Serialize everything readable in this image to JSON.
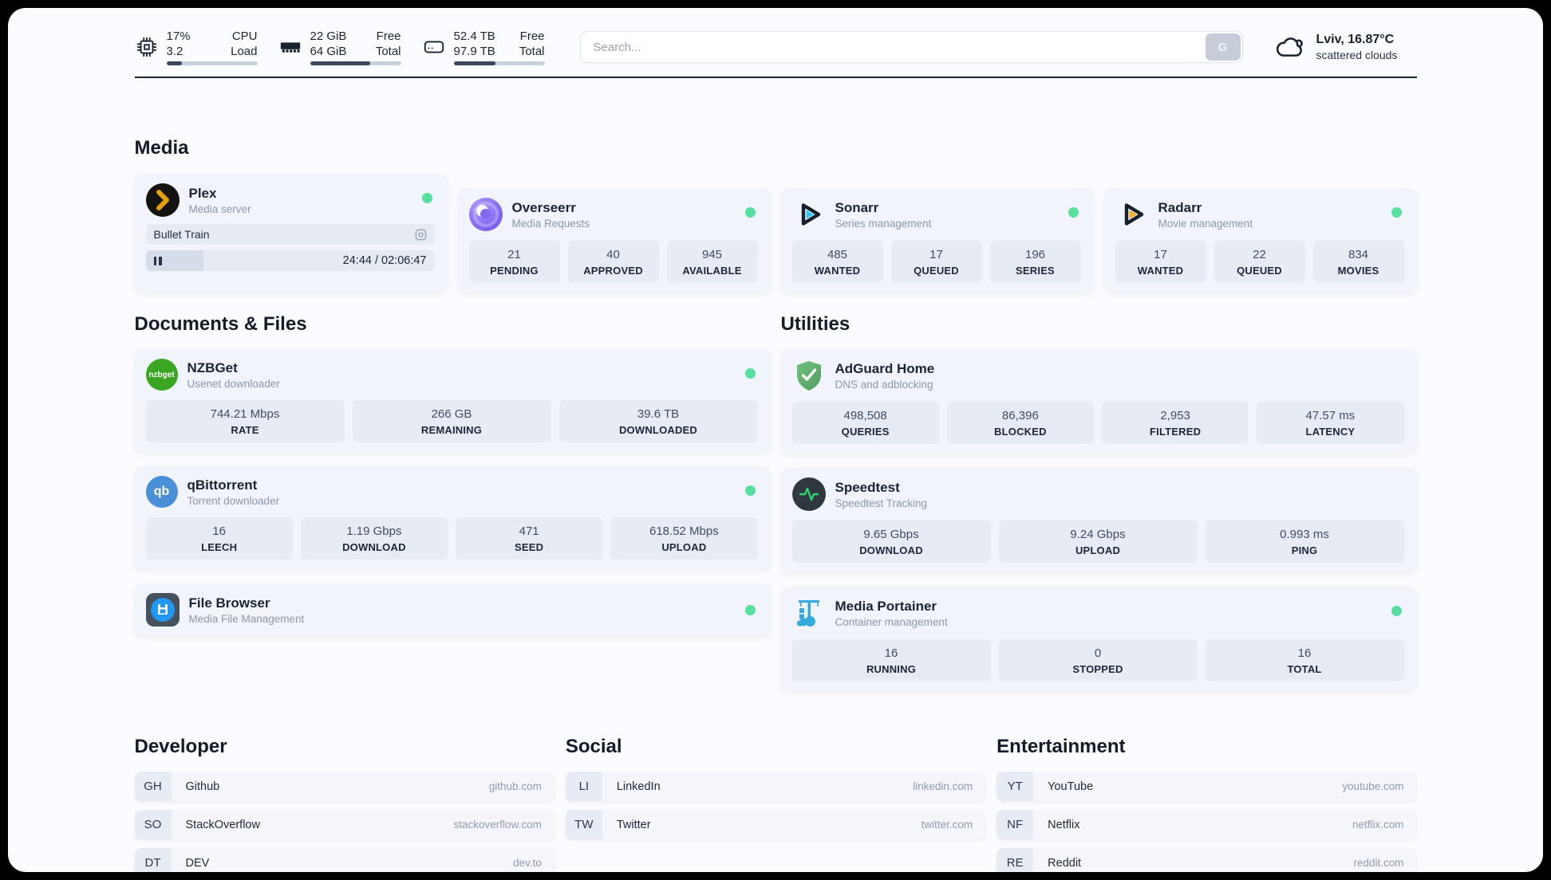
{
  "header": {
    "stats": [
      {
        "icon": "cpu-icon",
        "value1": "17%",
        "label1": "CPU",
        "value2": "3.2",
        "label2": "Load",
        "progress": 17
      },
      {
        "icon": "ram-icon",
        "value1": "22 GiB",
        "label1": "Free",
        "value2": "64 GiB",
        "label2": "Total",
        "progress": 66
      },
      {
        "icon": "disk-icon",
        "value1": "52.4 TB",
        "label1": "Free",
        "value2": "97.9 TB",
        "label2": "Total",
        "progress": 46
      }
    ],
    "search": {
      "placeholder": "Search...",
      "button": "G"
    },
    "weather": {
      "icon": "cloud-icon",
      "title": "Lviv, 16.87°C",
      "condition": "scattered clouds"
    }
  },
  "media": {
    "title": "Media",
    "plex": {
      "name": "Plex",
      "subtitle": "Media server",
      "icon": "plex-icon",
      "online": true,
      "now_playing": "Bullet Train",
      "time": "24:44 / 02:06:47",
      "progress_pct": 20
    },
    "overseerr": {
      "name": "Overseerr",
      "subtitle": "Media Requests",
      "icon": "overseerr-icon",
      "online": true,
      "stats": [
        {
          "value": "21",
          "label": "PENDING"
        },
        {
          "value": "40",
          "label": "APPROVED"
        },
        {
          "value": "945",
          "label": "AVAILABLE"
        }
      ]
    },
    "sonarr": {
      "name": "Sonarr",
      "subtitle": "Series management",
      "icon": "sonarr-icon",
      "online": true,
      "stats": [
        {
          "value": "485",
          "label": "WANTED"
        },
        {
          "value": "17",
          "label": "QUEUED"
        },
        {
          "value": "196",
          "label": "SERIES"
        }
      ]
    },
    "radarr": {
      "name": "Radarr",
      "subtitle": "Movie management",
      "icon": "radarr-icon",
      "online": true,
      "stats": [
        {
          "value": "17",
          "label": "WANTED"
        },
        {
          "value": "22",
          "label": "QUEUED"
        },
        {
          "value": "834",
          "label": "MOVIES"
        }
      ]
    }
  },
  "documents": {
    "title": "Documents & Files",
    "nzbget": {
      "name": "NZBGet",
      "subtitle": "Usenet downloader",
      "icon": "nzbget-icon",
      "icon_text": "nzbget",
      "online": true,
      "stats": [
        {
          "value": "744.21 Mbps",
          "label": "RATE"
        },
        {
          "value": "266 GB",
          "label": "REMAINING"
        },
        {
          "value": "39.6 TB",
          "label": "DOWNLOADED"
        }
      ]
    },
    "qbittorrent": {
      "name": "qBittorrent",
      "subtitle": "Torrent downloader",
      "icon": "qbittorrent-icon",
      "icon_text": "qb",
      "online": true,
      "stats": [
        {
          "value": "16",
          "label": "LEECH"
        },
        {
          "value": "1.19 Gbps",
          "label": "DOWNLOAD"
        },
        {
          "value": "471",
          "label": "SEED"
        },
        {
          "value": "618.52 Mbps",
          "label": "UPLOAD"
        }
      ]
    },
    "filebrowser": {
      "name": "File Browser",
      "subtitle": "Media File Management",
      "icon": "filebrowser-icon",
      "online": true
    }
  },
  "utilities": {
    "title": "Utilities",
    "adguard": {
      "name": "AdGuard Home",
      "subtitle": "DNS and adblocking",
      "icon": "adguard-icon",
      "stats": [
        {
          "value": "498,508",
          "label": "QUERIES"
        },
        {
          "value": "86,396",
          "label": "BLOCKED"
        },
        {
          "value": "2,953",
          "label": "FILTERED"
        },
        {
          "value": "47.57 ms",
          "label": "LATENCY"
        }
      ]
    },
    "speedtest": {
      "name": "Speedtest",
      "subtitle": "Speedtest Tracking",
      "icon": "speedtest-icon",
      "stats": [
        {
          "value": "9.65 Gbps",
          "label": "DOWNLOAD"
        },
        {
          "value": "9.24 Gbps",
          "label": "UPLOAD"
        },
        {
          "value": "0.993 ms",
          "label": "PING"
        }
      ]
    },
    "portainer": {
      "name": "Media Portainer",
      "subtitle": "Container management",
      "icon": "portainer-icon",
      "online": true,
      "stats": [
        {
          "value": "16",
          "label": "RUNNING"
        },
        {
          "value": "0",
          "label": "STOPPED"
        },
        {
          "value": "16",
          "label": "TOTAL"
        }
      ]
    }
  },
  "bookmarks": [
    {
      "title": "Developer",
      "items": [
        {
          "abbr": "GH",
          "name": "Github",
          "url": "github.com"
        },
        {
          "abbr": "SO",
          "name": "StackOverflow",
          "url": "stackoverflow.com"
        },
        {
          "abbr": "DT",
          "name": "DEV",
          "url": "dev.to"
        }
      ]
    },
    {
      "title": "Social",
      "items": [
        {
          "abbr": "LI",
          "name": "LinkedIn",
          "url": "linkedin.com"
        },
        {
          "abbr": "TW",
          "name": "Twitter",
          "url": "twitter.com"
        }
      ]
    },
    {
      "title": "Entertainment",
      "items": [
        {
          "abbr": "YT",
          "name": "YouTube",
          "url": "youtube.com"
        },
        {
          "abbr": "NF",
          "name": "Netflix",
          "url": "netflix.com"
        },
        {
          "abbr": "RE",
          "name": "Reddit",
          "url": "reddit.com"
        }
      ]
    }
  ],
  "colors": {
    "status_online": "#57dfa0",
    "progress_fill": "#3a4659",
    "card_bg": "#f1f4fa",
    "statbox_bg": "#e6ebf4",
    "divider": "#1d2533"
  }
}
